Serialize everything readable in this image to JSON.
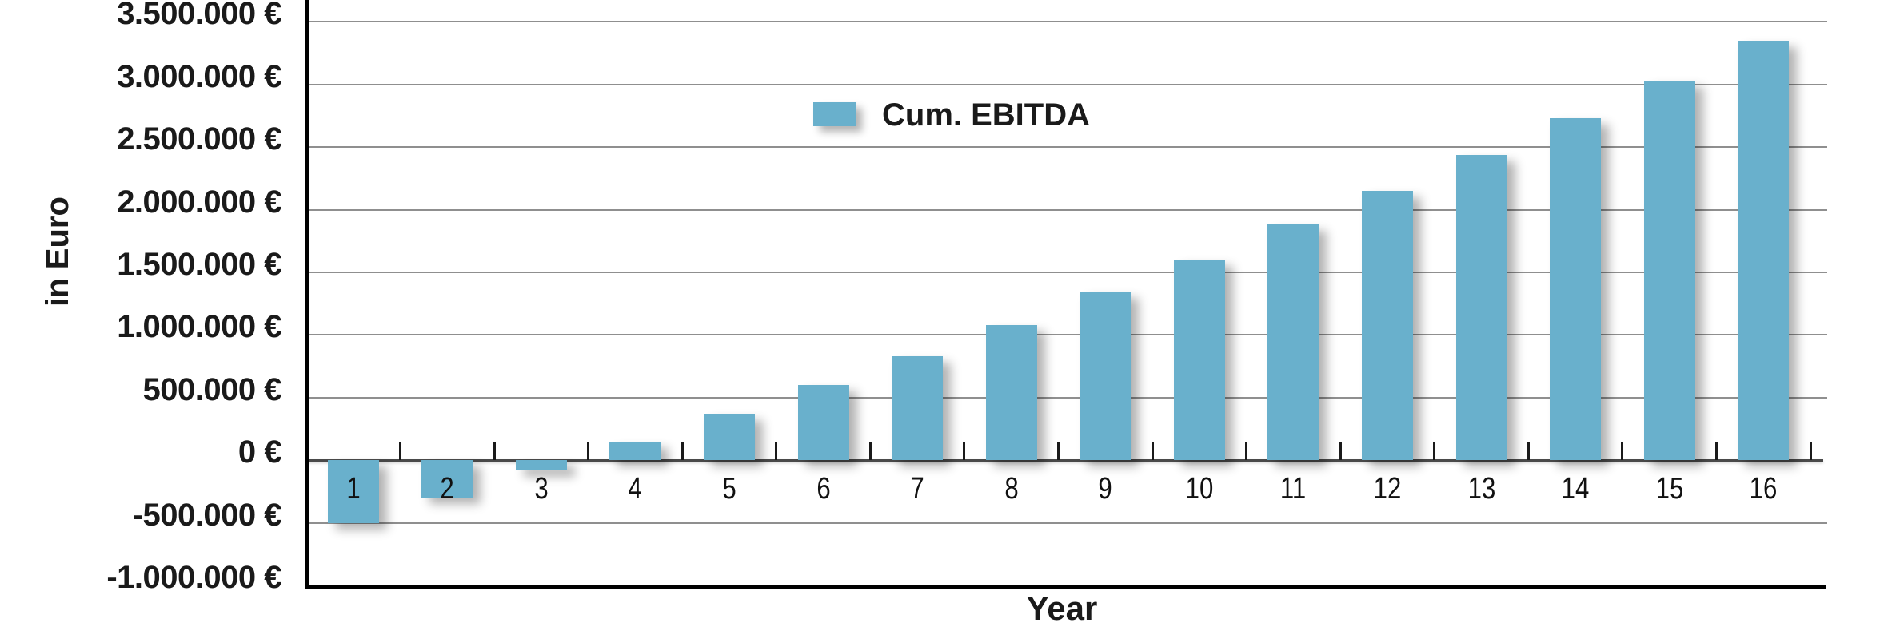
{
  "chart_data": {
    "type": "bar",
    "title": "",
    "xlabel": "Year",
    "ylabel": "in Euro",
    "legend_label": "Cum. EBITDA",
    "legend_position": "inside-top-center-left",
    "grid": true,
    "bar_color": "#69B0CC",
    "gridline_color": "#8f8f8f",
    "zero_line_color": "#4a4a4a",
    "axis_color": "#000000",
    "ylim": [
      -1000000,
      3690000
    ],
    "categories": [
      "1",
      "2",
      "3",
      "4",
      "5",
      "6",
      "7",
      "8",
      "9",
      "10",
      "11",
      "12",
      "13",
      "14",
      "15",
      "16"
    ],
    "series": [
      {
        "name": "Cum. EBITDA",
        "values": [
          -500000,
          -300000,
          -80000,
          150000,
          370000,
          600000,
          830000,
          1080000,
          1350000,
          1600000,
          1880000,
          2150000,
          2440000,
          2730000,
          3030000,
          3350000
        ]
      }
    ],
    "y_ticks": [
      {
        "value": 3500000,
        "label": "3.500.000 €"
      },
      {
        "value": 3000000,
        "label": "3.000.000 €"
      },
      {
        "value": 2500000,
        "label": "2.500.000 €"
      },
      {
        "value": 2000000,
        "label": "2.000.000 €"
      },
      {
        "value": 1500000,
        "label": "1.500.000 €"
      },
      {
        "value": 1000000,
        "label": "1.000.000 €"
      },
      {
        "value": 500000,
        "label": "500.000 €"
      },
      {
        "value": 0,
        "label": "0 €"
      },
      {
        "value": -500000,
        "label": "-500.000 €"
      },
      {
        "value": -1000000,
        "label": "-1.000.000 €"
      }
    ]
  }
}
